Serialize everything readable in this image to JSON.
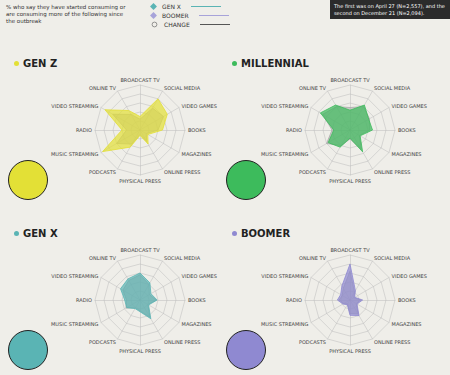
{
  "header": {
    "subtitle": "% who say they have started consuming or are consuming more of the following since the outbreak",
    "note": "The first was on April 27 (N=2,557), and the second on December 21 (N=2,094).",
    "legend_items": [
      {
        "label": "GEN X",
        "color": "#5ab4b4"
      },
      {
        "label": "BOOMER",
        "color": "#a7a3d9"
      },
      {
        "label": "CHANGE",
        "color": "#555555"
      }
    ]
  },
  "chart_data": [
    {
      "type": "radar",
      "title": "GEN Z",
      "categories": [
        "BROADCAST TV",
        "ONLINE TV",
        "VIDEO STREAMING",
        "RADIO",
        "MUSIC STREAMING",
        "PODCASTS",
        "PHYSICAL PRESS",
        "ONLINE PRESS",
        "MAGAZINES",
        "BOOKS",
        "VIDEO GAMES",
        "SOCIAL MEDIA"
      ],
      "ylim": [
        0,
        50
      ],
      "yticks": [
        0,
        10,
        20,
        30,
        40,
        50
      ],
      "grid": true,
      "tick_labels": false,
      "series": [
        {
          "color": "#a9a9a9",
          "values": [
            12,
            20,
            35,
            15,
            30,
            18,
            5,
            15,
            8,
            20,
            30,
            28
          ]
        },
        {
          "color": "#e3e036",
          "values": [
            15,
            25,
            45,
            20,
            48,
            22,
            6,
            18,
            10,
            25,
            35,
            40
          ]
        }
      ]
    },
    {
      "type": "radar",
      "title": "MILLENNIAL",
      "categories": [
        "BROADCAST TV",
        "ONLINE TV",
        "VIDEO STREAMING",
        "RADIO",
        "MUSIC STREAMING",
        "PODCASTS",
        "PHYSICAL PRESS",
        "ONLINE PRESS",
        "MAGAZINES",
        "BOOKS",
        "VIDEO GAMES",
        "SOCIAL MEDIA"
      ],
      "ylim": [
        0,
        50
      ],
      "yticks": [
        0,
        10,
        20,
        30,
        40,
        50
      ],
      "grid": true,
      "tick_labels": false,
      "series": [
        {
          "color": "#a9a9a9",
          "values": [
            25,
            30,
            35,
            20,
            30,
            20,
            10,
            25,
            12,
            22,
            25,
            30
          ]
        },
        {
          "color": "#3dbb5c",
          "values": [
            22,
            32,
            38,
            18,
            28,
            22,
            9,
            28,
            13,
            25,
            24,
            32
          ]
        }
      ]
    },
    {
      "type": "radar",
      "title": "GEN X",
      "categories": [
        "BROADCAST TV",
        "ONLINE TV",
        "VIDEO STREAMING",
        "RADIO",
        "MUSIC STREAMING",
        "PODCASTS",
        "PHYSICAL PRESS",
        "ONLINE PRESS",
        "MAGAZINES",
        "BOOKS",
        "VIDEO GAMES",
        "SOCIAL MEDIA"
      ],
      "ylim": [
        0,
        50
      ],
      "yticks": [
        0,
        10,
        20,
        30,
        40,
        50
      ],
      "grid": true,
      "tick_labels": false,
      "series": [
        {
          "color": "#a9a9a9",
          "values": [
            28,
            25,
            22,
            15,
            18,
            10,
            12,
            22,
            10,
            18,
            12,
            20
          ]
        },
        {
          "color": "#5ab4b4",
          "values": [
            30,
            27,
            25,
            17,
            17,
            11,
            13,
            24,
            11,
            19,
            14,
            22
          ]
        }
      ]
    },
    {
      "type": "radar",
      "title": "BOOMER",
      "categories": [
        "BROADCAST TV",
        "ONLINE TV",
        "VIDEO STREAMING",
        "RADIO",
        "MUSIC STREAMING",
        "PODCASTS",
        "PHYSICAL PRESS",
        "ONLINE PRESS",
        "MAGAZINES",
        "BOOKS",
        "VIDEO GAMES",
        "SOCIAL MEDIA"
      ],
      "ylim": [
        0,
        50
      ],
      "yticks": [
        0,
        10,
        20,
        30,
        40,
        50
      ],
      "grid": true,
      "tick_labels": false,
      "series": [
        {
          "color": "#a9a9a9",
          "values": [
            32,
            15,
            10,
            12,
            8,
            5,
            15,
            18,
            8,
            12,
            5,
            10
          ]
        },
        {
          "color": "#8f89d1",
          "values": [
            40,
            18,
            12,
            14,
            9,
            6,
            17,
            20,
            9,
            14,
            6,
            12
          ]
        }
      ]
    }
  ]
}
